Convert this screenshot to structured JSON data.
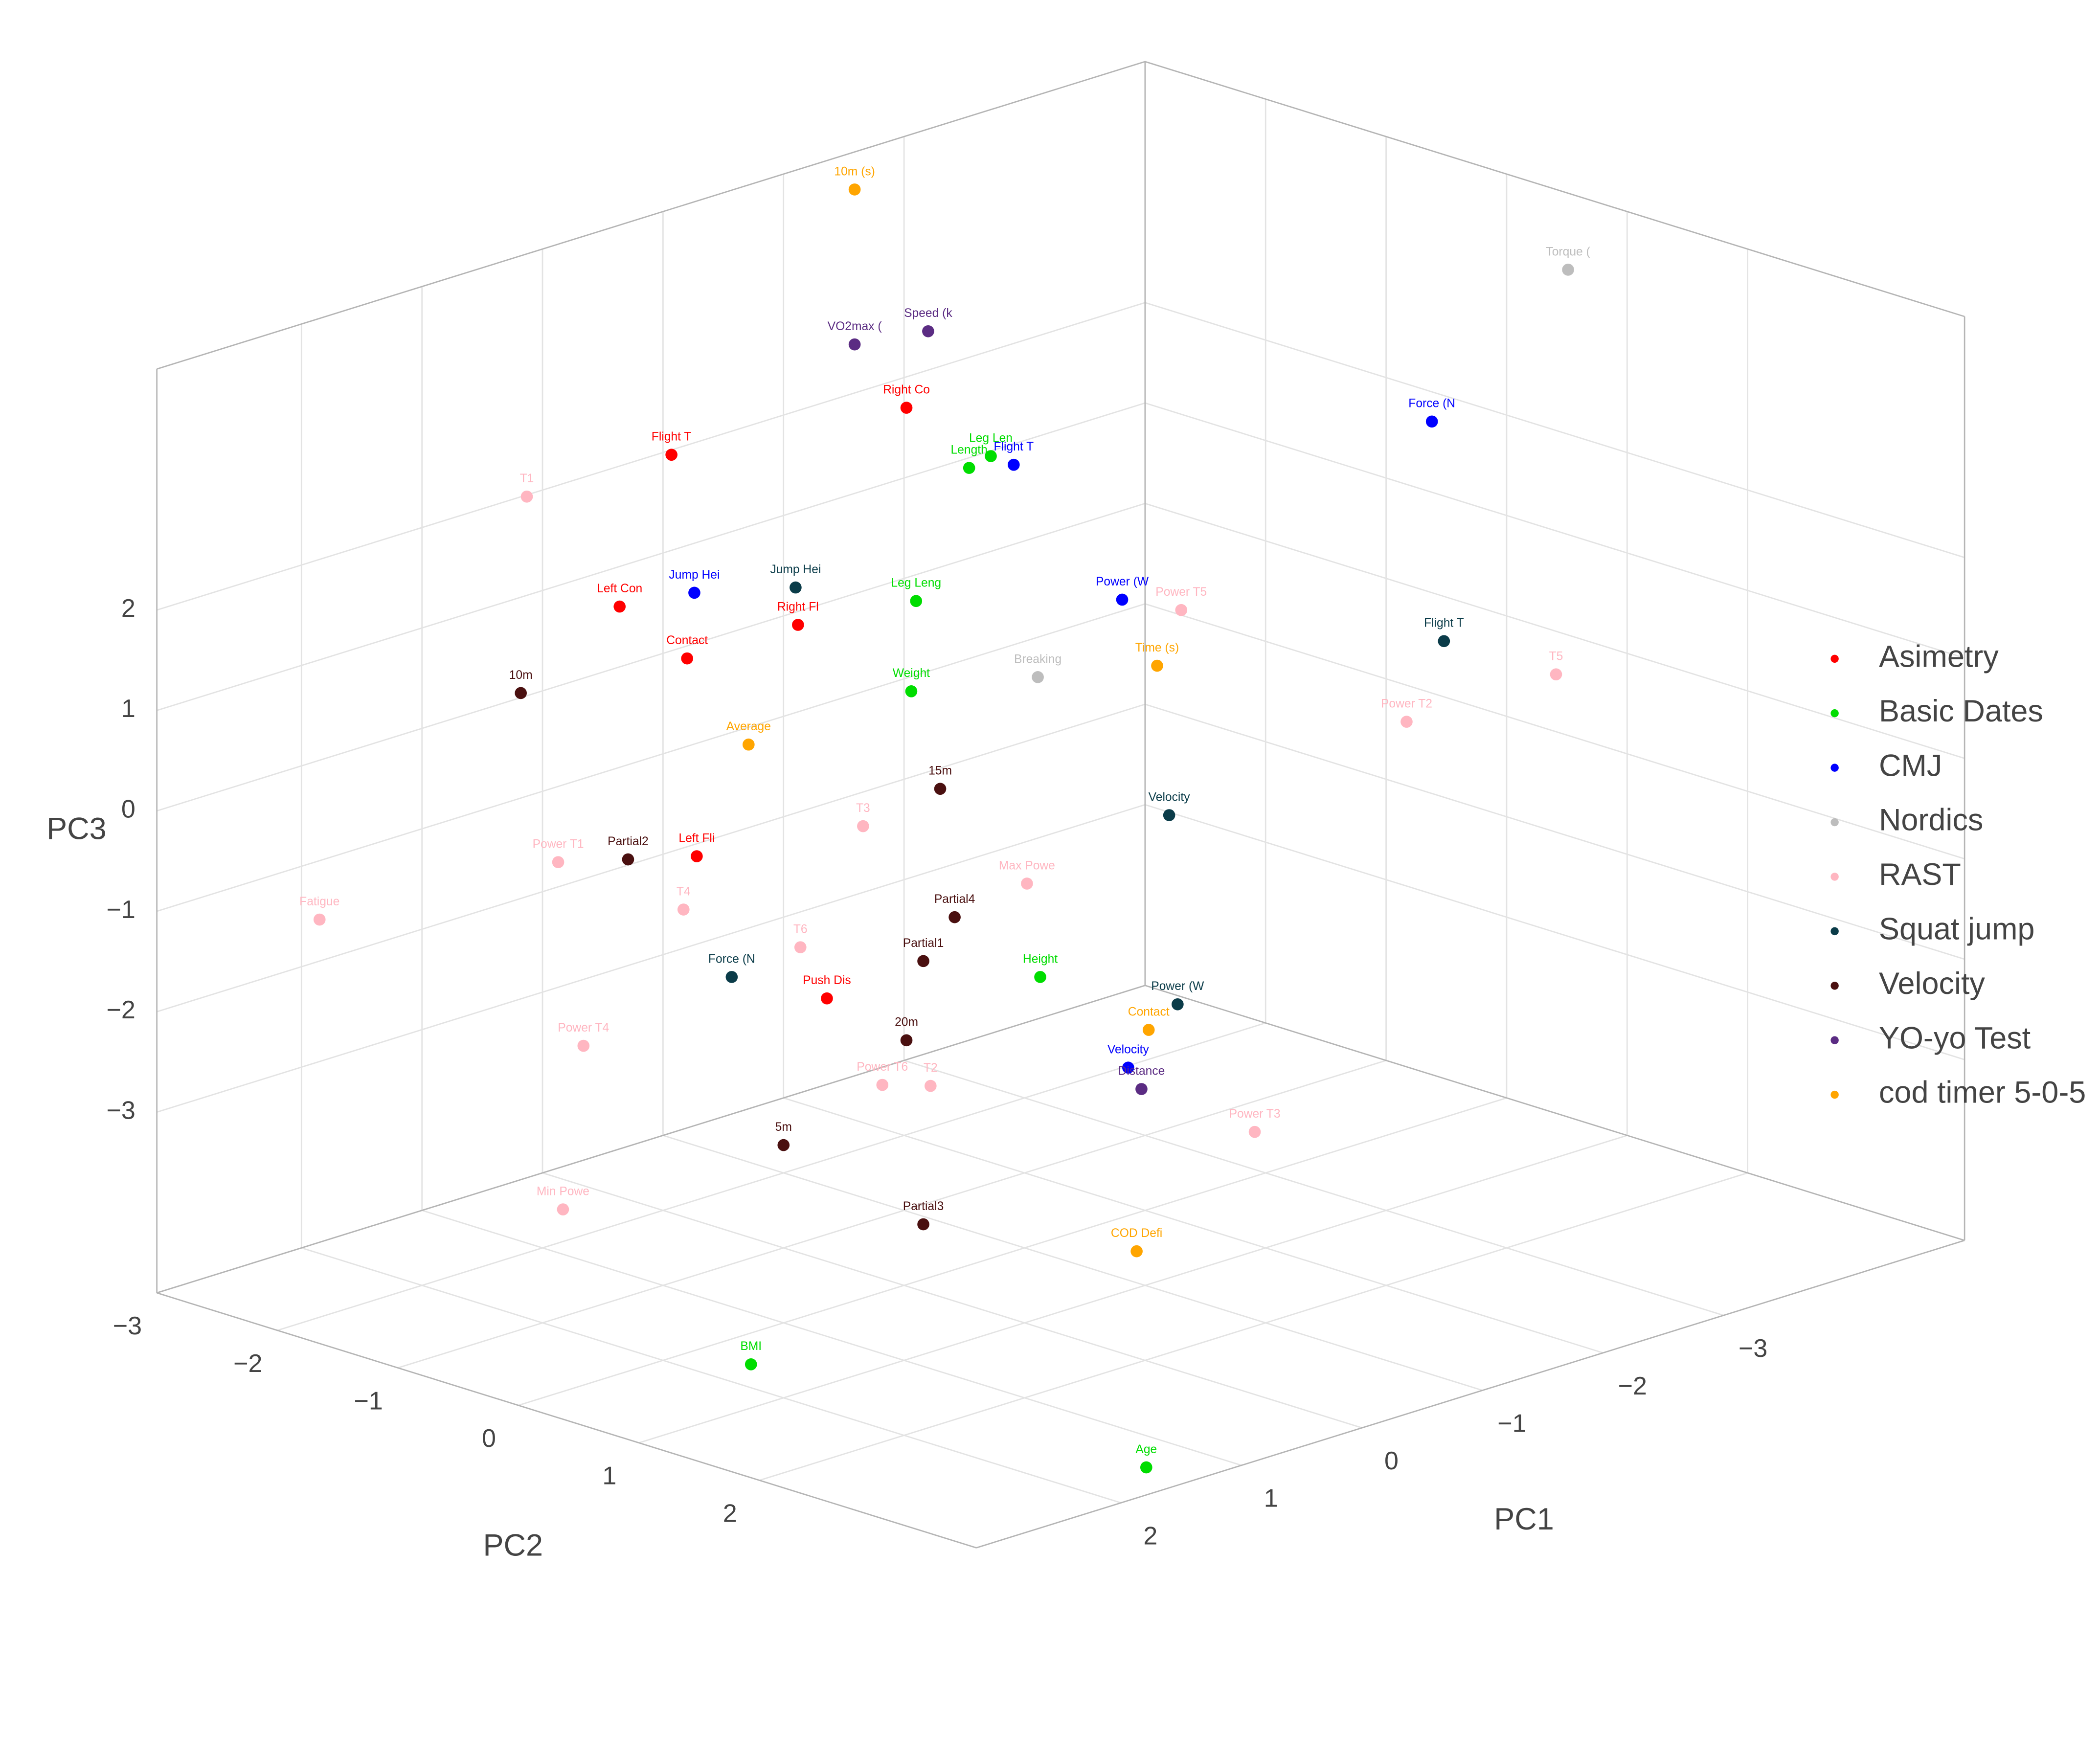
{
  "chart_data": {
    "type": "scatter3d",
    "xlabel": "PC1",
    "ylabel": "PC2",
    "zlabel": "PC3",
    "xlim": [
      -5,
      3.2
    ],
    "ylim": [
      -3,
      3.8
    ],
    "zlim": [
      -4.8,
      4.4
    ],
    "xticks": [
      {
        "value": -3,
        "label": "−3"
      },
      {
        "value": -2,
        "label": "−2"
      },
      {
        "value": -1,
        "label": "−1"
      },
      0,
      1,
      2
    ],
    "yticks": [
      {
        "value": -3,
        "label": "−3"
      },
      {
        "value": -2,
        "label": "−2"
      },
      {
        "value": -1,
        "label": "−1"
      },
      0,
      1,
      2
    ],
    "zticks": [
      {
        "value": -3,
        "label": "−3"
      },
      {
        "value": -2,
        "label": "−2"
      },
      {
        "value": -1,
        "label": "−1"
      },
      0,
      1,
      2
    ],
    "grid": true,
    "legend": "right",
    "series": [
      {
        "name": "Asimetry",
        "color": "#ff0000",
        "labels": [
          "Right Co",
          "Flight T",
          "Left Con",
          "Right Fl",
          "Contact",
          "Left Fli",
          "Push Dis"
        ],
        "x": [
          -1.59,
          -0.43,
          0.39,
          -0.28,
          0.32,
          1.07,
          1.1
        ],
        "y": [
          -1.57,
          -2.36,
          -1.97,
          -1.16,
          -1.48,
          -0.65,
          0.46
        ],
        "z": [
          2.76,
          2.43,
          1.37,
          1.24,
          1.01,
          -0.37,
          -1.36
        ]
      },
      {
        "name": "Basic Dates",
        "color": "#00dd00",
        "labels": [
          "Length",
          "Leg Len",
          "Leg Leng",
          "Weight",
          "Height",
          "BMI",
          "Age"
        ],
        "x": [
          -1.61,
          -1.75,
          -0.86,
          -0.48,
          0.13,
          2.88,
          1.65
        ],
        "y": [
          -1.07,
          -1.03,
          -0.76,
          -0.42,
          1.26,
          1.61,
          3.66
        ],
        "z": [
          2.34,
          2.42,
          1.41,
          0.78,
          -1.21,
          -3.91,
          -4.63
        ]
      },
      {
        "name": "CMJ",
        "color": "#0000ff",
        "labels": [
          "Flight T",
          "Force (N",
          "Jump Hei",
          "Power (W",
          "Velocity"
        ],
        "x": [
          -1.81,
          -3.72,
          0.03,
          -1.72,
          0.13
        ],
        "y": [
          -0.9,
          0.66,
          -1.71,
          0.09,
          1.99
        ],
        "z": [
          2.36,
          2.66,
          1.47,
          1.42,
          -1.84
        ]
      },
      {
        "name": "Nordics",
        "color": "#bdbdbd",
        "labels": [
          "Torque (",
          "Breaking"
        ],
        "x": [
          -4.89,
          -1.06
        ],
        "y": [
          0.62,
          0.05
        ],
        "z": [
          3.72,
          0.88
        ]
      },
      {
        "name": "RAST",
        "color": "#ffb6c1",
        "labels": [
          "T1",
          "Power T5",
          "T5",
          "Power T2",
          "T3",
          "Power T1",
          "Max Powe",
          "T4",
          "Fatigue",
          "T6",
          "Power T4",
          "Power T6",
          "T2",
          "Power T3",
          "Min Powe"
        ],
        "x": [
          0.34,
          -1.92,
          -3.22,
          -2.41,
          0.26,
          1.67,
          -0.19,
          1.34,
          2.89,
          1.01,
          2.3,
          1.22,
          1.02,
          -0.14,
          3.04
        ],
        "y": [
          -2.79,
          0.38,
          2.19,
          1.76,
          -0.08,
          -1.2,
          0.83,
          -0.49,
          -1.96,
          0.15,
          -0.36,
          1.04,
          1.24,
          2.77,
          0.21
        ],
        "z": [
          2.14,
          1.35,
          0.9,
          0.57,
          -0.16,
          -0.41,
          -0.56,
          -0.74,
          -0.81,
          -1.0,
          -1.69,
          -1.96,
          -1.97,
          -2.29,
          -2.83
        ]
      },
      {
        "name": "Squat jump",
        "color": "#0b3c49",
        "labels": [
          "Jump Hei",
          "Flight T",
          "Velocity",
          "Force (N",
          "Power (W"
        ],
        "x": [
          -0.42,
          -2.89,
          -1.05,
          1.41,
          -0.33
        ],
        "y": [
          -1.32,
          1.59,
          1.15,
          -0.02,
          1.94
        ],
        "z": [
          1.5,
          1.13,
          -0.08,
          -1.21,
          -1.4
        ]
      },
      {
        "name": "Velocity",
        "color": "#4a1010",
        "labels": [
          "10m",
          "15m",
          "Partial2",
          "Partial4",
          "Partial1",
          "20m",
          "5m",
          "Partial3"
        ],
        "x": [
          1.15,
          -0.21,
          1.37,
          0.25,
          0.55,
          0.94,
          1.87,
          1.61
        ],
        "y": [
          -2.03,
          0.09,
          -0.92,
          0.67,
          0.71,
          0.96,
          0.87,
          1.77
        ],
        "z": [
          0.77,
          0.1,
          -0.39,
          -0.79,
          -1.1,
          -1.65,
          -2.38,
          -2.93
        ]
      },
      {
        "name": "YO-yo Test",
        "color": "#5b2c83",
        "labels": [
          "Speed (k",
          "VO2max (",
          "Distance"
        ],
        "x": [
          -1.99,
          -1.63,
          0.16
        ],
        "y": [
          -1.79,
          -2.04,
          2.13
        ],
        "z": [
          3.29,
          3.2,
          -1.99
        ]
      },
      {
        "name": "cod timer 5-0-5",
        "color": "#ffa500",
        "labels": [
          "10m (s)",
          "Time (s)",
          "Average",
          "Contact",
          "COD Defi"
        ],
        "x": [
          -2.25,
          -1.6,
          0.41,
          -0.11,
          0.83
        ],
        "y": [
          -2.66,
          0.5,
          -0.88,
          1.92,
          2.76
        ],
        "z": [
          4.28,
          0.96,
          0.41,
          -1.58,
          -3.12
        ]
      }
    ]
  }
}
